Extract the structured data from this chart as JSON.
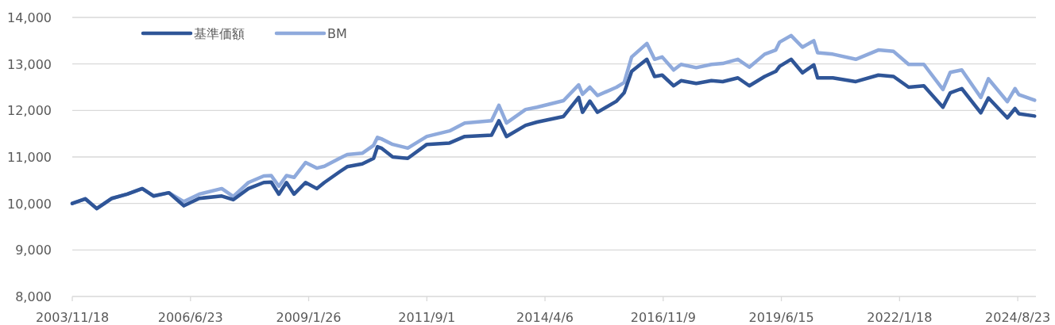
{
  "chart_data": {
    "type": "line",
    "legend": "top left",
    "grid": "y",
    "line_style": "solid",
    "marker": "none",
    "x": [
      "2003-11-18",
      "2004-03",
      "2004-06",
      "2004-10",
      "2005-02",
      "2005-06",
      "2005-09",
      "2006-01",
      "2006-05",
      "2006-09",
      "2007-03",
      "2007-06",
      "2007-10",
      "2008-02",
      "2008-04",
      "2008-06",
      "2008-08",
      "2008-10",
      "2009-01",
      "2009-04",
      "2009-06",
      "2009-10",
      "2009-12",
      "2010-04",
      "2010-07",
      "2010-08",
      "2010-09",
      "2010-12",
      "2011-04",
      "2011-09",
      "2012-03",
      "2012-07",
      "2013-02",
      "2013-04",
      "2013-06",
      "2013-11",
      "2014-02",
      "2014-09",
      "2015-01",
      "2015-02",
      "2015-04",
      "2015-06",
      "2015-11",
      "2016-01",
      "2016-03",
      "2016-07",
      "2016-09",
      "2016-11",
      "2017-02",
      "2017-04",
      "2017-08",
      "2017-12",
      "2018-03",
      "2018-07",
      "2018-10",
      "2019-02",
      "2019-05",
      "2019-06",
      "2019-09",
      "2019-12",
      "2020-03",
      "2020-04",
      "2020-08",
      "2021-02",
      "2021-08",
      "2021-12",
      "2022-04",
      "2022-08",
      "2023-01",
      "2023-03",
      "2023-06",
      "2023-11",
      "2024-01",
      "2024-06",
      "2024-08",
      "2024-09",
      "2025-01-05"
    ],
    "series": [
      {
        "name": "基準価額",
        "color": "#2f5597",
        "values": [
          10000,
          10100,
          9890,
          10110,
          10200,
          10320,
          10160,
          10230,
          9950,
          10110,
          10160,
          10080,
          10320,
          10450,
          10460,
          10200,
          10450,
          10200,
          10450,
          10320,
          10450,
          10680,
          10790,
          10850,
          10970,
          11220,
          11190,
          11000,
          10970,
          11270,
          11300,
          11440,
          11470,
          11780,
          11440,
          11680,
          11750,
          11870,
          12280,
          11960,
          12200,
          11960,
          12200,
          12380,
          12840,
          13100,
          12730,
          12760,
          12530,
          12640,
          12580,
          12640,
          12620,
          12700,
          12530,
          12730,
          12840,
          12950,
          13100,
          12810,
          12980,
          12700,
          12700,
          12620,
          12760,
          12730,
          12500,
          12530,
          12070,
          12380,
          12470,
          11950,
          12270,
          11840,
          12040,
          11930,
          11880
        ]
      },
      {
        "name": "BM",
        "color": "#8faadc",
        "values": [
          10000,
          10100,
          9890,
          10110,
          10200,
          10320,
          10160,
          10230,
          10040,
          10200,
          10320,
          10150,
          10450,
          10590,
          10600,
          10370,
          10600,
          10560,
          10880,
          10760,
          10800,
          10970,
          11050,
          11080,
          11250,
          11420,
          11390,
          11270,
          11190,
          11440,
          11560,
          11730,
          11780,
          12110,
          11730,
          12020,
          12070,
          12210,
          12550,
          12350,
          12500,
          12320,
          12500,
          12600,
          13150,
          13440,
          13100,
          13150,
          12870,
          12990,
          12920,
          12990,
          13010,
          13100,
          12930,
          13210,
          13300,
          13470,
          13610,
          13360,
          13500,
          13240,
          13210,
          13100,
          13300,
          13270,
          12990,
          12990,
          12450,
          12820,
          12870,
          12280,
          12680,
          12190,
          12470,
          12340,
          12220
        ]
      }
    ],
    "xlim": [
      "2003-11-18",
      "2025-01-16"
    ],
    "xticks": [
      {
        "value": "2003-11-18",
        "label": "2003/11/18"
      },
      {
        "value": "2006-06-23",
        "label": "2006/6/23"
      },
      {
        "value": "2009-01-26",
        "label": "2009/1/26"
      },
      {
        "value": "2011-09-01",
        "label": "2011/9/1"
      },
      {
        "value": "2014-04-06",
        "label": "2014/4/6"
      },
      {
        "value": "2016-11-09",
        "label": "2016/11/9"
      },
      {
        "value": "2019-06-15",
        "label": "2019/6/15"
      },
      {
        "value": "2022-01-18",
        "label": "2022/1/18"
      },
      {
        "value": "2024-08-23",
        "label": "2024/8/23"
      }
    ],
    "ylim": [
      8000,
      14000
    ],
    "yticks": [
      {
        "value": 8000,
        "label": "8,000"
      },
      {
        "value": 9000,
        "label": "9,000"
      },
      {
        "value": 10000,
        "label": "10,000"
      },
      {
        "value": 11000,
        "label": "11,000"
      },
      {
        "value": 12000,
        "label": "12,000"
      },
      {
        "value": 13000,
        "label": "13,000"
      },
      {
        "value": 14000,
        "label": "14,000"
      }
    ]
  }
}
